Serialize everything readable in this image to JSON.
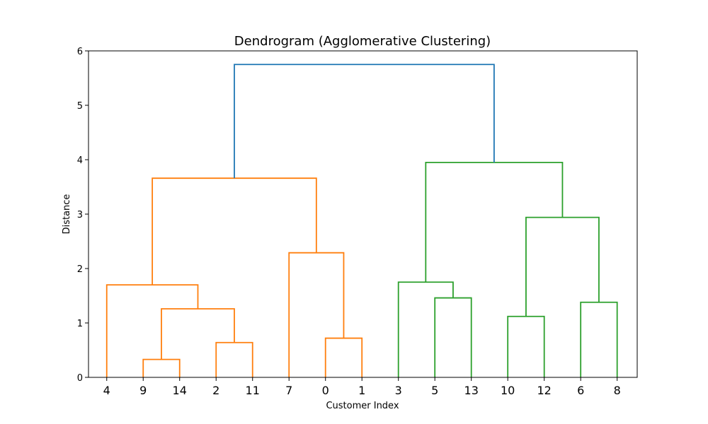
{
  "chart_data": {
    "type": "dendrogram",
    "title": "Dendrogram (Agglomerative Clustering)",
    "xlabel": "Customer Index",
    "ylabel": "Distance",
    "ylim": [
      0,
      6
    ],
    "yticks": [
      0,
      1,
      2,
      3,
      4,
      5,
      6
    ],
    "leaves": [
      "4",
      "9",
      "14",
      "2",
      "11",
      "7",
      "0",
      "1",
      "3",
      "5",
      "13",
      "10",
      "12",
      "6",
      "8"
    ],
    "colors": {
      "cluster_a": "#ff7f0e",
      "cluster_b": "#2ca02c",
      "root": "#1f77b4"
    },
    "merges": [
      {
        "left": "9",
        "right": "14",
        "height": 0.33,
        "color": "cluster_a"
      },
      {
        "left": "2",
        "right": "11",
        "height": 0.64,
        "color": "cluster_a"
      },
      {
        "left": "0",
        "right": "1",
        "height": 0.72,
        "color": "cluster_a"
      },
      {
        "left": "10",
        "right": "12",
        "height": 1.12,
        "color": "cluster_b"
      },
      {
        "left": "(9,14)",
        "right": "(2,11)",
        "height": 1.26,
        "color": "cluster_a"
      },
      {
        "left": "6",
        "right": "8",
        "height": 1.38,
        "color": "cluster_b"
      },
      {
        "left": "5",
        "right": "13",
        "height": 1.46,
        "color": "cluster_b"
      },
      {
        "left": "4",
        "right": "((9,14),(2,11))",
        "height": 1.7,
        "color": "cluster_a"
      },
      {
        "left": "3",
        "right": "(5,13)",
        "height": 1.75,
        "color": "cluster_b"
      },
      {
        "left": "7",
        "right": "(0,1)",
        "height": 2.29,
        "color": "cluster_a"
      },
      {
        "left": "(10,12)",
        "right": "(6,8)",
        "height": 2.94,
        "color": "cluster_b"
      },
      {
        "left": "(4,...)",
        "right": "(7,(0,1))",
        "height": 3.66,
        "color": "cluster_a"
      },
      {
        "left": "(3,(5,13))",
        "right": "((10,12),(6,8))",
        "height": 3.95,
        "color": "cluster_b"
      },
      {
        "left": "cluster_a",
        "right": "cluster_b",
        "height": 5.75,
        "color": "root"
      }
    ]
  }
}
